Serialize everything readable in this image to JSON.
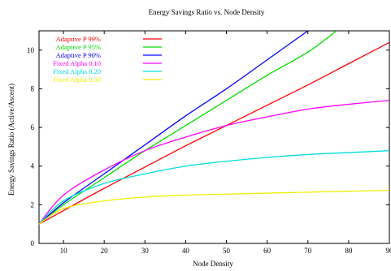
{
  "chart_data": {
    "type": "line",
    "title": "Energy Savings Ratio vs. Node Density",
    "xlabel": "Node Density",
    "ylabel": "Energy Savings Ratio (Active/Ascent)",
    "xlim": [
      4,
      90
    ],
    "ylim": [
      0,
      11
    ],
    "xticks": [
      10,
      20,
      30,
      40,
      50,
      60,
      70,
      80,
      90
    ],
    "yticks": [
      0,
      2,
      4,
      6,
      8,
      10
    ],
    "xtick_labels": [
      "10",
      "20",
      "30",
      "40",
      "50",
      "60",
      "70",
      "80",
      "90"
    ],
    "ytick_labels": [
      "0",
      "2",
      "4",
      "6",
      "8",
      "10"
    ],
    "grid": false,
    "legend_position": "top-left",
    "series": [
      {
        "name": "Adaptive P 99%",
        "color": "#ff0000",
        "x": [
          4,
          10,
          20,
          30,
          40,
          50,
          60,
          70,
          80,
          90
        ],
        "y": [
          1.0,
          1.7,
          2.85,
          3.95,
          5.05,
          6.1,
          7.15,
          8.2,
          9.3,
          10.4
        ]
      },
      {
        "name": "Adaptive P 95%",
        "color": "#00dd00",
        "x": [
          4,
          10,
          20,
          30,
          40,
          50,
          60,
          70,
          77
        ],
        "y": [
          1.0,
          2.0,
          3.4,
          4.8,
          6.1,
          7.4,
          8.7,
          9.9,
          11.0
        ]
      },
      {
        "name": "Adaptive P 90%",
        "color": "#0000ff",
        "x": [
          4,
          10,
          20,
          30,
          40,
          50,
          60,
          70
        ],
        "y": [
          1.0,
          2.1,
          3.6,
          5.1,
          6.6,
          8.0,
          9.5,
          11.0
        ]
      },
      {
        "name": "Fixed Alpha 0.10",
        "color": "#ff00ff",
        "x": [
          4,
          10,
          20,
          30,
          40,
          50,
          60,
          70,
          80,
          90
        ],
        "y": [
          1.0,
          2.5,
          3.8,
          4.8,
          5.5,
          6.1,
          6.55,
          6.95,
          7.2,
          7.4
        ]
      },
      {
        "name": "Fixed Alpha 0.20",
        "color": "#00dddd",
        "x": [
          4,
          10,
          20,
          30,
          40,
          50,
          60,
          70,
          80,
          90
        ],
        "y": [
          1.0,
          2.2,
          3.1,
          3.6,
          4.0,
          4.25,
          4.45,
          4.6,
          4.7,
          4.8
        ]
      },
      {
        "name": "Fixed Alpha 0.30",
        "color": "#eeee00",
        "x": [
          4,
          10,
          20,
          30,
          40,
          50,
          60,
          70,
          80,
          90
        ],
        "y": [
          1.0,
          1.8,
          2.2,
          2.4,
          2.5,
          2.55,
          2.6,
          2.65,
          2.7,
          2.75
        ]
      }
    ]
  }
}
